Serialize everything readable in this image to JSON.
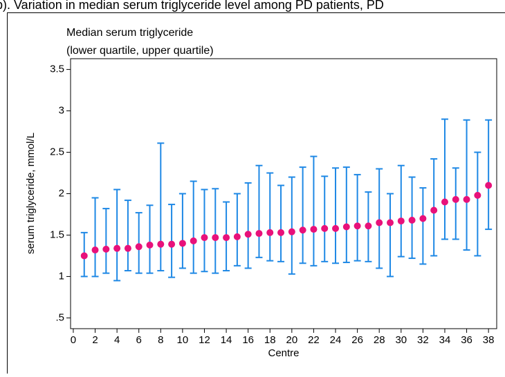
{
  "caption": "b). Variation in median serum triglyceride level among PD patients, PD",
  "chart_data": {
    "type": "errorbar",
    "title": "Median serum triglyceride",
    "subtitle": "(lower quartile, upper quartile)",
    "x_label": "Centre",
    "y_label": "serum triglyceride, mmol/L",
    "x": [
      1,
      2,
      3,
      4,
      5,
      6,
      7,
      8,
      9,
      10,
      11,
      12,
      13,
      14,
      15,
      16,
      17,
      18,
      19,
      20,
      21,
      22,
      23,
      24,
      25,
      26,
      27,
      28,
      29,
      30,
      31,
      32,
      33,
      34,
      35,
      36,
      37,
      38
    ],
    "median": [
      1.25,
      1.32,
      1.33,
      1.34,
      1.34,
      1.36,
      1.38,
      1.39,
      1.39,
      1.4,
      1.43,
      1.47,
      1.47,
      1.47,
      1.48,
      1.51,
      1.52,
      1.53,
      1.53,
      1.54,
      1.56,
      1.57,
      1.58,
      1.58,
      1.6,
      1.61,
      1.61,
      1.65,
      1.65,
      1.67,
      1.68,
      1.7,
      1.8,
      1.9,
      1.93,
      1.93,
      1.98,
      2.1
    ],
    "lower": [
      1.0,
      1.0,
      1.04,
      0.95,
      1.07,
      1.04,
      1.04,
      1.07,
      0.99,
      1.1,
      1.04,
      1.06,
      1.04,
      1.07,
      1.13,
      1.1,
      1.23,
      1.19,
      1.18,
      1.03,
      1.16,
      1.13,
      1.18,
      1.16,
      1.17,
      1.19,
      1.18,
      1.1,
      1.0,
      1.24,
      1.22,
      1.15,
      1.25,
      1.45,
      1.45,
      1.32,
      1.25,
      1.57
    ],
    "upper": [
      1.53,
      1.95,
      1.82,
      2.05,
      1.92,
      1.77,
      1.86,
      2.61,
      1.87,
      2.0,
      2.15,
      2.05,
      2.06,
      1.9,
      2.0,
      2.13,
      2.34,
      2.25,
      2.1,
      2.2,
      2.32,
      2.45,
      2.21,
      2.31,
      2.32,
      2.23,
      2.02,
      2.3,
      2.0,
      2.34,
      2.2,
      2.07,
      2.42,
      2.9,
      2.31,
      2.89,
      2.5,
      2.89
    ],
    "color": "#e8117a",
    "bar_color": "#1e88e5",
    "xlim": [
      -0.25,
      38.75
    ],
    "ylim": [
      0.37,
      3.63
    ],
    "xticks": [
      0,
      2,
      4,
      6,
      8,
      10,
      12,
      14,
      16,
      18,
      20,
      22,
      24,
      26,
      28,
      30,
      32,
      34,
      36,
      38
    ],
    "yticks": [
      {
        "value": 0.5,
        "label": ".5"
      },
      1,
      1.5,
      2,
      2.5,
      3,
      3.5
    ]
  }
}
